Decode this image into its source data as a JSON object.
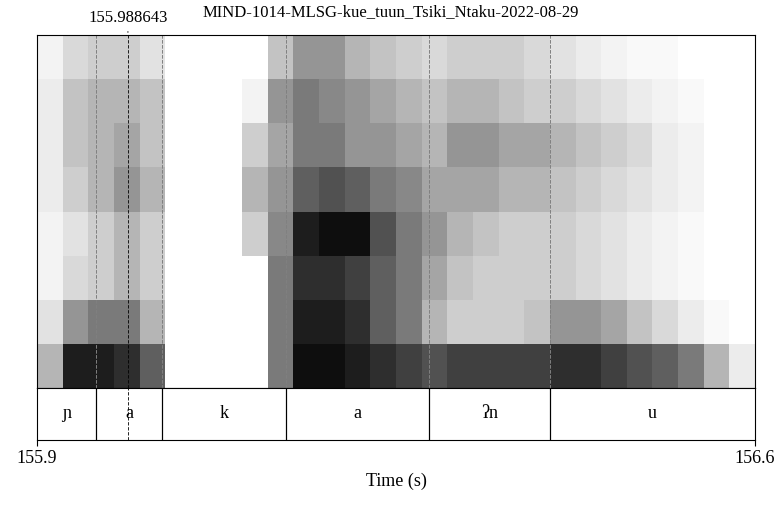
{
  "chart_data": {
    "type": "spectrogram",
    "title": "MIND-1014-MLSG-kue_tuun_Tsiki_Ntaku-2022-08-29",
    "x_label": "Time (s)",
    "xlim": [
      155.9,
      156.6
    ],
    "xticks": [
      155.9,
      156.6
    ],
    "tick_labels": "x",
    "cursor": 155.988643,
    "time_bins": [
      155.9,
      155.925,
      155.95,
      155.975,
      156.0,
      156.025,
      156.05,
      156.075,
      156.1,
      156.125,
      156.15,
      156.175,
      156.2,
      156.225,
      156.25,
      156.275,
      156.3,
      156.325,
      156.35,
      156.375,
      156.4,
      156.425,
      156.45,
      156.475,
      156.5,
      156.525,
      156.55,
      156.575,
      156.6
    ],
    "cell_range": [
      0,
      1
    ],
    "cells": [
      [
        0.4,
        0.9,
        0.9,
        0.85,
        0.7,
        0,
        0,
        0,
        0,
        0.6,
        0.95,
        0.95,
        0.9,
        0.85,
        0.8,
        0.75,
        0.8,
        0.8,
        0.8,
        0.8,
        0.85,
        0.85,
        0.8,
        0.75,
        0.7,
        0.6,
        0.4,
        0.15
      ],
      [
        0.2,
        0.5,
        0.6,
        0.6,
        0.4,
        0,
        0,
        0,
        0,
        0.6,
        0.9,
        0.9,
        0.85,
        0.7,
        0.6,
        0.4,
        0.3,
        0.3,
        0.3,
        0.35,
        0.5,
        0.5,
        0.45,
        0.35,
        0.25,
        0.15,
        0.05,
        0
      ],
      [
        0.1,
        0.25,
        0.3,
        0.4,
        0.3,
        0,
        0,
        0,
        0,
        0.6,
        0.85,
        0.85,
        0.8,
        0.7,
        0.6,
        0.45,
        0.35,
        0.3,
        0.3,
        0.3,
        0.3,
        0.25,
        0.2,
        0.15,
        0.1,
        0.05,
        0,
        0
      ],
      [
        0.1,
        0.2,
        0.3,
        0.4,
        0.3,
        0,
        0,
        0,
        0.3,
        0.55,
        0.9,
        0.95,
        0.95,
        0.75,
        0.6,
        0.5,
        0.4,
        0.35,
        0.3,
        0.3,
        0.3,
        0.25,
        0.2,
        0.15,
        0.1,
        0.05,
        0,
        0
      ],
      [
        0.15,
        0.3,
        0.4,
        0.5,
        0.4,
        0,
        0,
        0,
        0.4,
        0.5,
        0.7,
        0.75,
        0.7,
        0.6,
        0.55,
        0.45,
        0.45,
        0.45,
        0.4,
        0.4,
        0.35,
        0.3,
        0.25,
        0.2,
        0.15,
        0.1,
        0,
        0
      ],
      [
        0.15,
        0.35,
        0.4,
        0.45,
        0.35,
        0,
        0,
        0,
        0.3,
        0.45,
        0.6,
        0.6,
        0.5,
        0.5,
        0.45,
        0.4,
        0.5,
        0.5,
        0.45,
        0.45,
        0.4,
        0.35,
        0.3,
        0.25,
        0.15,
        0.1,
        0,
        0
      ],
      [
        0.15,
        0.35,
        0.4,
        0.4,
        0.35,
        0,
        0,
        0,
        0.1,
        0.5,
        0.6,
        0.55,
        0.5,
        0.45,
        0.4,
        0.35,
        0.4,
        0.4,
        0.35,
        0.3,
        0.3,
        0.25,
        0.2,
        0.15,
        0.1,
        0.05,
        0,
        0
      ],
      [
        0.1,
        0.25,
        0.3,
        0.3,
        0.2,
        0,
        0,
        0,
        0,
        0.35,
        0.5,
        0.5,
        0.4,
        0.35,
        0.3,
        0.25,
        0.3,
        0.3,
        0.3,
        0.25,
        0.2,
        0.15,
        0.1,
        0.05,
        0.05,
        0,
        0,
        0
      ]
    ],
    "intervals": [
      {
        "start": 155.9,
        "end": 155.9575,
        "label": "ɲ"
      },
      {
        "start": 155.9575,
        "end": 156.0219,
        "label": "a"
      },
      {
        "start": 156.0219,
        "end": 156.1428,
        "label": "k"
      },
      {
        "start": 156.1428,
        "end": 156.2822,
        "label": "a"
      },
      {
        "start": 156.2822,
        "end": 156.4001,
        "label": "ʔn"
      },
      {
        "start": 156.4001,
        "end": 156.6,
        "label": "u"
      }
    ]
  }
}
